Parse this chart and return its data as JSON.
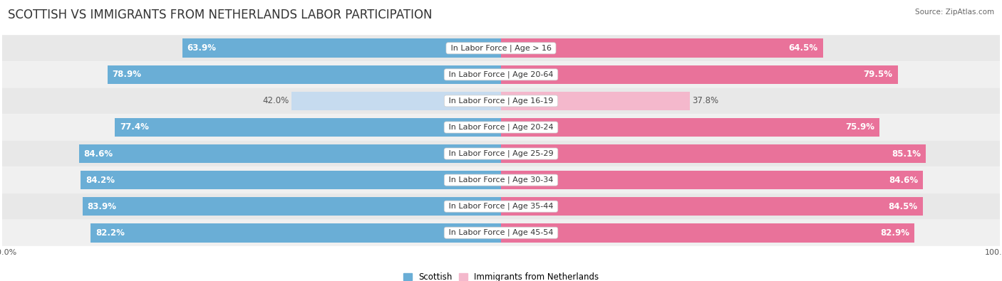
{
  "title": "SCOTTISH VS IMMIGRANTS FROM NETHERLANDS LABOR PARTICIPATION",
  "source": "Source: ZipAtlas.com",
  "categories": [
    "In Labor Force | Age > 16",
    "In Labor Force | Age 20-64",
    "In Labor Force | Age 16-19",
    "In Labor Force | Age 20-24",
    "In Labor Force | Age 25-29",
    "In Labor Force | Age 30-34",
    "In Labor Force | Age 35-44",
    "In Labor Force | Age 45-54"
  ],
  "scottish": [
    63.9,
    78.9,
    42.0,
    77.4,
    84.6,
    84.2,
    83.9,
    82.2
  ],
  "netherlands": [
    64.5,
    79.5,
    37.8,
    75.9,
    85.1,
    84.6,
    84.5,
    82.9
  ],
  "scottish_color": "#6aaed6",
  "scottish_light_color": "#c6dbef",
  "netherlands_color": "#e9729a",
  "netherlands_light_color": "#f4b8cc",
  "row_bg": "#e8e8e8",
  "row_bg_white": "#ffffff",
  "max_val": 100.0,
  "legend_scottish_color": "#6aaed6",
  "legend_netherlands_color": "#f4b8cc",
  "bar_height": 0.72,
  "title_fontsize": 12,
  "label_fontsize": 8,
  "value_fontsize": 8.5
}
